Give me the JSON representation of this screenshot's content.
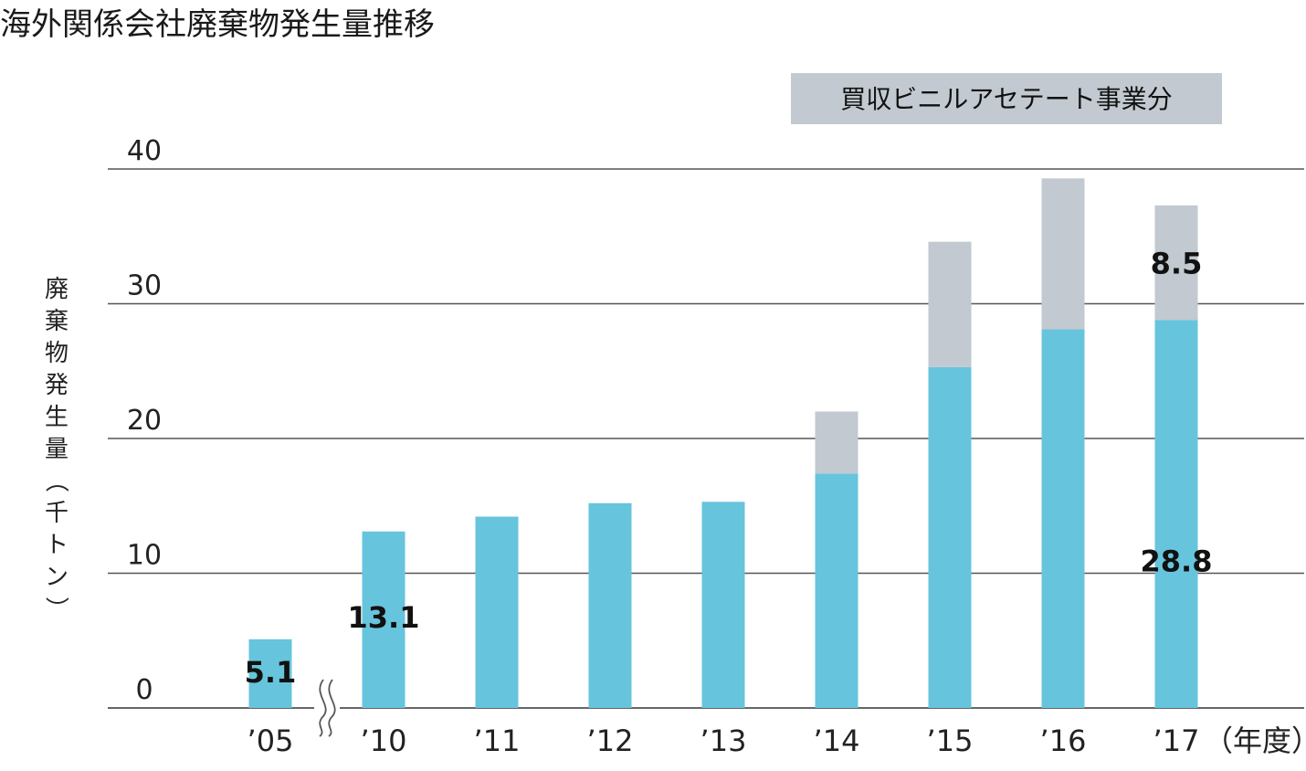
{
  "chart_data": {
    "type": "bar",
    "stacked": true,
    "title": "海外関係会社廃棄物発生量推移",
    "ylabel": "廃棄物発生量（千トン）",
    "xlabel": "（年度）",
    "ylim": [
      0,
      40
    ],
    "yticks": [
      0,
      10,
      20,
      30,
      40
    ],
    "grid": true,
    "legend_position": "top-right",
    "categories": [
      "’05",
      "’10",
      "’11",
      "’12",
      "’13",
      "’14",
      "’15",
      "’16",
      "’17"
    ],
    "axis_break_after_index": 0,
    "series": [
      {
        "key": "base",
        "color": "#67c4dd",
        "values": [
          5.1,
          13.1,
          14.2,
          15.2,
          15.3,
          17.4,
          25.3,
          28.1,
          28.8
        ],
        "labels": [
          "5.1",
          "13.1",
          "",
          "",
          "",
          "",
          "",
          "",
          "28.8"
        ]
      },
      {
        "key": "acquired",
        "name": "買収ビニルアセテート事業分",
        "color": "#c2c9d0",
        "values": [
          0,
          0,
          0,
          0,
          0,
          4.6,
          9.3,
          11.2,
          8.5
        ],
        "labels": [
          "",
          "",
          "",
          "",
          "",
          "",
          "",
          "",
          "8.5"
        ]
      }
    ]
  }
}
